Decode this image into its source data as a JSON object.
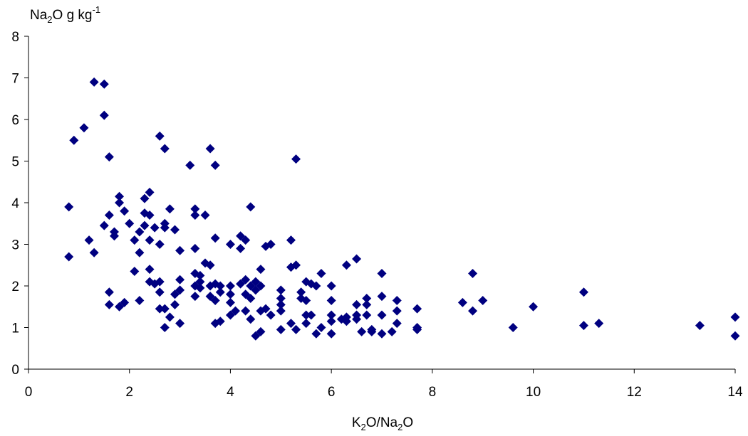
{
  "chart_data": {
    "type": "scatter",
    "title": "",
    "ylabel": {
      "main": "Na",
      "sub": "2",
      "rest": "O g kg",
      "sup": "-1"
    },
    "xlabel": {
      "a": "K",
      "a_sub": "2",
      "b": "O/Na",
      "b_sub": "2",
      "c": "O"
    },
    "xlim": [
      0,
      14
    ],
    "ylim": [
      0,
      8
    ],
    "xticks": [
      0,
      2,
      4,
      6,
      8,
      10,
      12,
      14
    ],
    "yticks": [
      0,
      1,
      2,
      3,
      4,
      5,
      6,
      7,
      8
    ],
    "grid": false,
    "marker": "diamond",
    "marker_color": "#000080",
    "series": [
      {
        "points": [
          [
            0.8,
            3.9
          ],
          [
            0.8,
            2.7
          ],
          [
            0.9,
            5.5
          ],
          [
            1.1,
            5.8
          ],
          [
            1.2,
            3.1
          ],
          [
            1.3,
            6.9
          ],
          [
            1.3,
            2.8
          ],
          [
            1.5,
            6.85
          ],
          [
            1.5,
            6.1
          ],
          [
            1.5,
            3.45
          ],
          [
            1.6,
            5.1
          ],
          [
            1.6,
            3.7
          ],
          [
            1.6,
            1.85
          ],
          [
            1.6,
            1.55
          ],
          [
            1.7,
            3.3
          ],
          [
            1.7,
            3.2
          ],
          [
            1.8,
            4.15
          ],
          [
            1.8,
            4.0
          ],
          [
            1.8,
            1.5
          ],
          [
            1.9,
            3.8
          ],
          [
            1.9,
            1.6
          ],
          [
            2.0,
            3.5
          ],
          [
            2.1,
            3.1
          ],
          [
            2.1,
            2.35
          ],
          [
            2.2,
            3.3
          ],
          [
            2.2,
            2.8
          ],
          [
            2.2,
            1.65
          ],
          [
            2.3,
            4.1
          ],
          [
            2.3,
            3.75
          ],
          [
            2.3,
            3.45
          ],
          [
            2.4,
            4.25
          ],
          [
            2.4,
            3.7
          ],
          [
            2.4,
            3.1
          ],
          [
            2.4,
            2.4
          ],
          [
            2.4,
            2.1
          ],
          [
            2.5,
            3.4
          ],
          [
            2.5,
            2.05
          ],
          [
            2.6,
            5.6
          ],
          [
            2.6,
            3.0
          ],
          [
            2.6,
            2.1
          ],
          [
            2.6,
            1.85
          ],
          [
            2.6,
            1.45
          ],
          [
            2.7,
            5.3
          ],
          [
            2.7,
            3.5
          ],
          [
            2.7,
            3.4
          ],
          [
            2.7,
            1.45
          ],
          [
            2.7,
            1.0
          ],
          [
            2.8,
            3.85
          ],
          [
            2.8,
            1.25
          ],
          [
            2.9,
            3.35
          ],
          [
            2.9,
            1.8
          ],
          [
            2.9,
            1.55
          ],
          [
            3.0,
            2.85
          ],
          [
            3.0,
            2.15
          ],
          [
            3.0,
            1.9
          ],
          [
            3.0,
            1.1
          ],
          [
            3.2,
            4.9
          ],
          [
            3.3,
            3.85
          ],
          [
            3.3,
            3.7
          ],
          [
            3.3,
            2.9
          ],
          [
            3.3,
            2.3
          ],
          [
            3.3,
            2.0
          ],
          [
            3.3,
            1.75
          ],
          [
            3.4,
            2.25
          ],
          [
            3.4,
            2.1
          ],
          [
            3.4,
            1.95
          ],
          [
            3.5,
            3.7
          ],
          [
            3.5,
            2.55
          ],
          [
            3.6,
            5.3
          ],
          [
            3.6,
            2.5
          ],
          [
            3.6,
            2.0
          ],
          [
            3.6,
            1.75
          ],
          [
            3.7,
            4.9
          ],
          [
            3.7,
            3.15
          ],
          [
            3.7,
            2.05
          ],
          [
            3.7,
            1.65
          ],
          [
            3.7,
            1.1
          ],
          [
            3.8,
            2.0
          ],
          [
            3.8,
            1.85
          ],
          [
            3.8,
            1.15
          ],
          [
            4.0,
            3.0
          ],
          [
            4.0,
            2.0
          ],
          [
            4.0,
            1.8
          ],
          [
            4.0,
            1.6
          ],
          [
            4.0,
            1.3
          ],
          [
            4.1,
            1.4
          ],
          [
            4.2,
            3.2
          ],
          [
            4.2,
            2.9
          ],
          [
            4.2,
            2.05
          ],
          [
            4.3,
            3.1
          ],
          [
            4.3,
            2.15
          ],
          [
            4.3,
            1.8
          ],
          [
            4.3,
            1.4
          ],
          [
            4.4,
            3.9
          ],
          [
            4.4,
            2.0
          ],
          [
            4.4,
            1.7
          ],
          [
            4.4,
            1.2
          ],
          [
            4.5,
            2.1
          ],
          [
            4.5,
            1.9
          ],
          [
            4.5,
            0.8
          ],
          [
            4.6,
            2.4
          ],
          [
            4.6,
            2.0
          ],
          [
            4.6,
            1.4
          ],
          [
            4.6,
            0.9
          ],
          [
            4.7,
            2.95
          ],
          [
            4.7,
            1.45
          ],
          [
            4.8,
            3.0
          ],
          [
            4.8,
            1.3
          ],
          [
            5.0,
            1.9
          ],
          [
            5.0,
            1.7
          ],
          [
            5.0,
            1.55
          ],
          [
            5.0,
            1.4
          ],
          [
            5.0,
            0.95
          ],
          [
            5.2,
            3.1
          ],
          [
            5.2,
            2.45
          ],
          [
            5.2,
            1.1
          ],
          [
            5.3,
            5.05
          ],
          [
            5.3,
            2.5
          ],
          [
            5.3,
            0.95
          ],
          [
            5.4,
            1.85
          ],
          [
            5.4,
            1.7
          ],
          [
            5.5,
            2.1
          ],
          [
            5.5,
            1.65
          ],
          [
            5.5,
            1.3
          ],
          [
            5.5,
            1.1
          ],
          [
            5.6,
            2.05
          ],
          [
            5.6,
            1.3
          ],
          [
            5.7,
            2.0
          ],
          [
            5.7,
            0.85
          ],
          [
            5.8,
            2.3
          ],
          [
            5.8,
            1.0
          ],
          [
            6.0,
            2.0
          ],
          [
            6.0,
            1.65
          ],
          [
            6.0,
            1.3
          ],
          [
            6.0,
            1.15
          ],
          [
            6.0,
            0.85
          ],
          [
            6.2,
            1.2
          ],
          [
            6.3,
            2.5
          ],
          [
            6.3,
            1.25
          ],
          [
            6.3,
            1.15
          ],
          [
            6.5,
            2.65
          ],
          [
            6.5,
            1.55
          ],
          [
            6.5,
            1.3
          ],
          [
            6.5,
            1.2
          ],
          [
            6.6,
            0.9
          ],
          [
            6.7,
            1.7
          ],
          [
            6.7,
            1.55
          ],
          [
            6.7,
            1.3
          ],
          [
            6.8,
            0.95
          ],
          [
            6.8,
            0.9
          ],
          [
            7.0,
            2.3
          ],
          [
            7.0,
            1.75
          ],
          [
            7.0,
            1.3
          ],
          [
            7.0,
            0.85
          ],
          [
            7.2,
            0.9
          ],
          [
            7.3,
            1.65
          ],
          [
            7.3,
            1.4
          ],
          [
            7.3,
            1.1
          ],
          [
            7.7,
            1.45
          ],
          [
            7.7,
            1.0
          ],
          [
            7.7,
            0.95
          ],
          [
            8.6,
            1.6
          ],
          [
            8.8,
            2.3
          ],
          [
            8.8,
            1.4
          ],
          [
            9.0,
            1.65
          ],
          [
            9.6,
            1.0
          ],
          [
            10.0,
            1.5
          ],
          [
            11.0,
            1.85
          ],
          [
            11.0,
            1.05
          ],
          [
            11.3,
            1.1
          ],
          [
            13.3,
            1.05
          ],
          [
            14.0,
            1.25
          ],
          [
            14.0,
            0.8
          ]
        ]
      }
    ]
  }
}
